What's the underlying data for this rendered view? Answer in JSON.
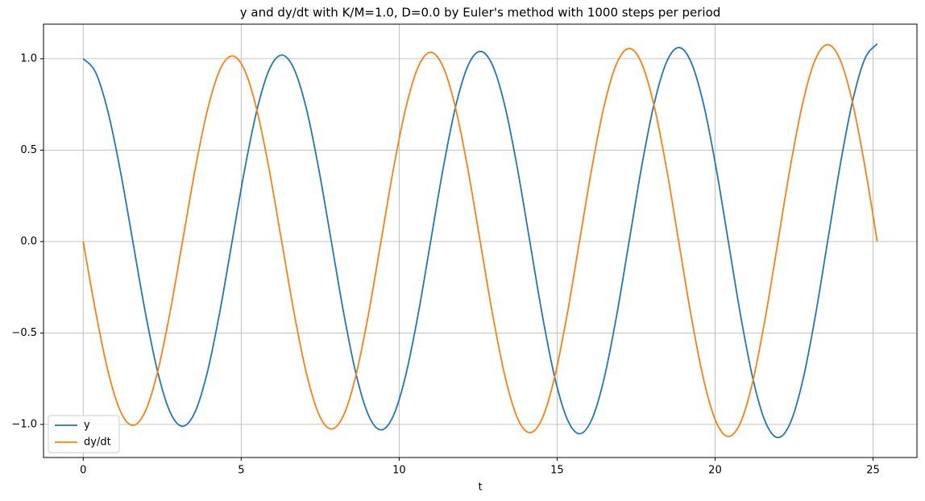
{
  "chart_data": {
    "type": "line",
    "title": "y and dy/dt with K/M=1.0, D=0.0 by Euler's method with 1000 steps per period",
    "x_label": "t",
    "x": [
      0,
      0.393,
      0.785,
      1.178,
      1.571,
      1.963,
      2.356,
      2.749,
      3.142,
      3.534,
      3.927,
      4.32,
      4.712,
      5.105,
      5.498,
      5.89,
      6.283,
      6.676,
      7.069,
      7.461,
      7.854,
      8.247,
      8.639,
      9.032,
      9.425,
      9.817,
      10.21,
      10.603,
      10.996,
      11.388,
      11.781,
      12.174,
      12.566,
      12.959,
      13.352,
      13.744,
      14.137,
      14.53,
      14.923,
      15.315,
      15.708,
      16.101,
      16.493,
      16.886,
      17.279,
      17.671,
      18.064,
      18.457,
      18.85,
      19.242,
      19.635,
      20.028,
      20.42,
      20.813,
      21.206,
      21.598,
      21.991,
      22.384,
      22.777,
      23.169,
      23.562,
      23.955,
      24.347,
      24.74,
      25.133
    ],
    "series": [
      {
        "name": "y",
        "color": "#1f77b4",
        "values": [
          1,
          0.925,
          0.709,
          0.384,
          0,
          -0.385,
          -0.712,
          -0.932,
          -1.01,
          -0.934,
          -0.716,
          -0.388,
          0,
          0.389,
          0.719,
          0.941,
          1.02,
          0.943,
          0.723,
          0.392,
          0,
          -0.393,
          -0.727,
          -0.951,
          -1.03,
          -0.953,
          -0.73,
          -0.396,
          0,
          0.396,
          0.734,
          0.96,
          1.04,
          0.963,
          0.738,
          0.4,
          0,
          -0.401,
          -0.741,
          -0.969,
          -1.051,
          -0.972,
          -0.745,
          -0.403,
          0,
          0.405,
          0.748,
          0.979,
          1.061,
          0.981,
          0.752,
          0.408,
          0,
          -0.409,
          -0.756,
          -0.989,
          -1.072,
          -0.991,
          -0.759,
          -0.412,
          0,
          0.413,
          0.764,
          0.999,
          1.082
        ]
      },
      {
        "name": "dy/dt",
        "color": "#ff7f0e",
        "values": [
          0,
          -0.383,
          -0.709,
          -0.928,
          -1.005,
          -0.929,
          -0.712,
          -0.386,
          0,
          0.387,
          0.716,
          0.937,
          1.015,
          0.939,
          0.719,
          0.39,
          0,
          -0.391,
          -0.723,
          -0.946,
          -1.025,
          -0.948,
          -0.727,
          -0.394,
          0,
          0.395,
          0.73,
          0.955,
          1.035,
          0.957,
          0.734,
          0.398,
          0,
          -0.399,
          -0.738,
          -0.965,
          -1.045,
          -0.967,
          -0.741,
          -0.401,
          0,
          0.403,
          0.745,
          0.974,
          1.056,
          0.977,
          0.748,
          0.406,
          0,
          -0.406,
          -0.752,
          -0.984,
          -1.066,
          -0.987,
          -0.756,
          -0.409,
          0,
          0.411,
          0.759,
          0.994,
          1.077,
          0.996,
          0.764,
          0.414,
          0
        ]
      }
    ],
    "xlim": [
      -1.257,
      26.39
    ],
    "ylim": [
      -1.181,
      1.189
    ],
    "xticks": [
      0,
      5,
      10,
      15,
      20,
      25
    ],
    "yticks": [
      {
        "value": -1.0,
        "label": "−1.0"
      },
      {
        "value": -0.5,
        "label": "−0.5"
      },
      {
        "value": 0.0,
        "label": "0.0"
      },
      {
        "value": 0.5,
        "label": "0.5"
      },
      {
        "value": 1.0,
        "label": "1.0"
      }
    ],
    "grid": true,
    "legend": "lower left"
  }
}
